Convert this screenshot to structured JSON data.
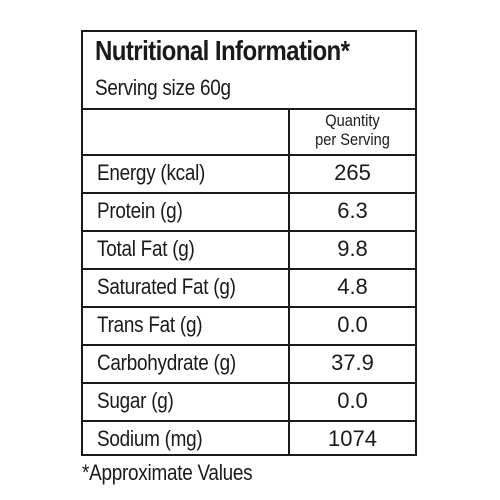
{
  "panel": {
    "title": "Nutritional Information*",
    "serving_size": "Serving size 60g"
  },
  "table": {
    "header": {
      "name": "",
      "value_line1": "Quantity",
      "value_line2": "per Serving"
    },
    "rows": [
      {
        "name": "Energy (kcal)",
        "value": "265"
      },
      {
        "name": "Protein (g)",
        "value": "6.3"
      },
      {
        "name": "Total Fat (g)",
        "value": "9.8"
      },
      {
        "name": "Saturated Fat (g)",
        "value": "4.8"
      },
      {
        "name": "Trans Fat (g)",
        "value": "0.0"
      },
      {
        "name": "Carbohydrate (g)",
        "value": "37.9"
      },
      {
        "name": "Sugar (g)",
        "value": "0.0"
      },
      {
        "name": "Sodium (mg)",
        "value": "1074"
      }
    ]
  },
  "footnote": "*Approximate Values"
}
